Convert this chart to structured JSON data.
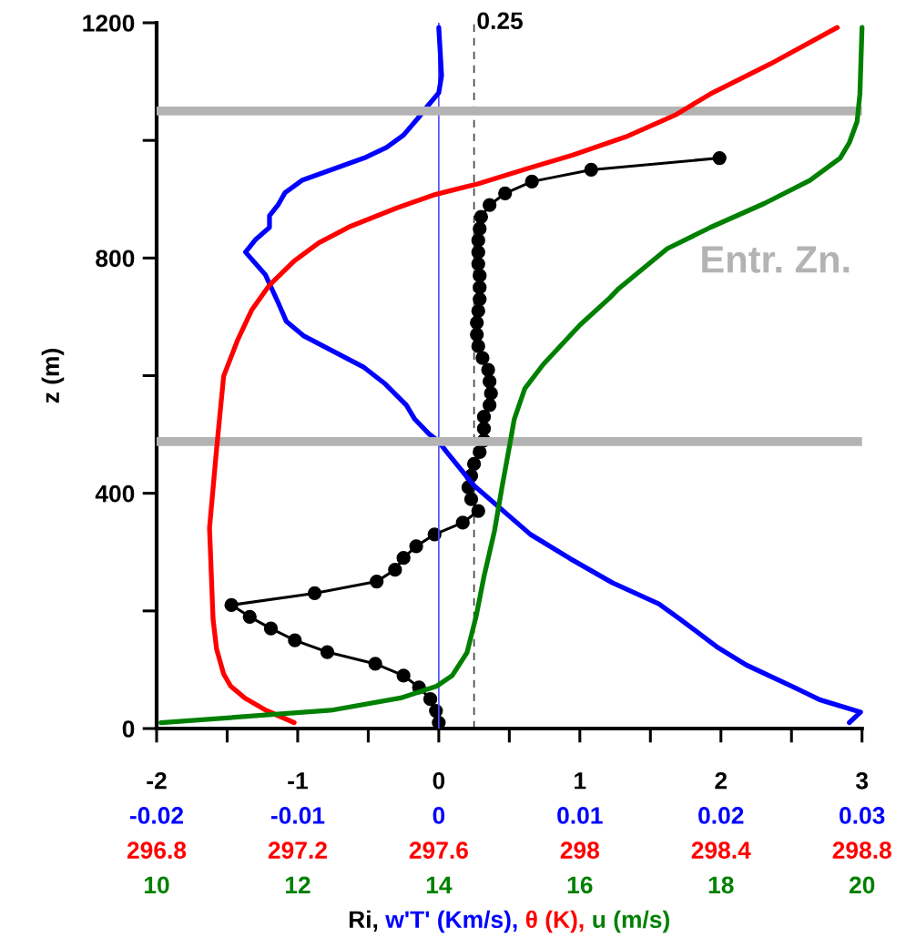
{
  "chart_data": [
    {
      "type": "line",
      "ylabel": "z (m)",
      "xlabel": "Ri, w'T' (Km/s), θ (K), u (m/s)",
      "ylim": [
        0,
        1200
      ],
      "yticks": [
        0,
        {
          "value": 200,
          "label": null
        },
        400,
        {
          "value": 600,
          "label": null
        },
        800,
        {
          "value": 1000,
          "label": null
        },
        1200
      ],
      "xlim": [
        -2,
        3
      ],
      "xticks": [
        -2,
        {
          "value": -1.5,
          "label": null
        },
        -1,
        {
          "value": -0.5,
          "label": null
        },
        0,
        {
          "value": 0.5,
          "label": null
        },
        1,
        {
          "value": 1.5,
          "label": null
        },
        2,
        {
          "value": 2.5,
          "label": null
        },
        3
      ],
      "x2lim": [
        -0.02,
        0.03
      ],
      "x2ticks": [
        -0.02,
        -0.01,
        0,
        0.01,
        0.02,
        0.03
      ],
      "line_style": "solid",
      "series": [
        {
          "color": "#000000",
          "marker": "circle",
          "x": [
            0,
            -0.02,
            -0.06,
            -0.14,
            -0.25,
            -0.45,
            -0.79,
            -1.02,
            -1.19,
            -1.34,
            -1.47,
            -0.88,
            -0.44,
            -0.31,
            -0.25,
            -0.16,
            -0.03,
            0.17,
            0.28,
            0.23,
            0.21,
            0.23,
            0.25,
            0.29,
            0.32,
            0.32,
            0.32,
            0.36,
            0.37,
            0.36,
            0.35,
            0.31,
            0.28,
            0.27,
            0.27,
            0.28,
            0.29,
            0.29,
            0.29,
            0.28,
            0.28,
            0.28,
            0.29,
            0.3,
            0.36,
            0.47,
            0.66,
            1.08,
            1.99
          ],
          "values": [
            10,
            30,
            50,
            70,
            90,
            110,
            130,
            150,
            170,
            190,
            210,
            230,
            250,
            270,
            290,
            310,
            330,
            350,
            370,
            390,
            410,
            430,
            450,
            470,
            490,
            510,
            530,
            550,
            570,
            590,
            610,
            630,
            650,
            670,
            690,
            710,
            730,
            750,
            770,
            790,
            810,
            830,
            850,
            870,
            890,
            910,
            930,
            950,
            970
          ]
        },
        {
          "color": "#0000ff",
          "marker": "none",
          "axis": "x2",
          "x": [
            0.0,
            0.0002,
            0.0,
            -0.0007,
            -0.0015,
            -0.0025,
            -0.0037,
            -0.0053,
            -0.0097,
            -0.0109,
            -0.0114,
            -0.012,
            -0.012,
            -0.013,
            -0.0137,
            -0.0123,
            -0.0114,
            -0.0108,
            -0.0096,
            -0.0053,
            -0.0038,
            -0.0023,
            -0.0017,
            -0.0007,
            0.0,
            0.0005,
            0.0025,
            0.0065,
            0.0093,
            0.0123,
            0.0156,
            0.0171,
            0.0197,
            0.0218,
            0.0252,
            0.027,
            0.0299,
            0.0291
          ],
          "values": [
            1192,
            1110,
            1081,
            1061,
            1037,
            1009,
            988,
            970,
            932,
            911,
            890,
            872,
            852,
            831,
            810,
            772,
            725,
            692,
            668,
            614,
            586,
            550,
            526,
            501,
            488,
            472,
            413,
            330,
            289,
            248,
            212,
            186,
            139,
            108,
            70,
            49,
            28,
            10
          ]
        }
      ],
      "ref_lines": [
        {
          "axis": "x",
          "value": 0.25,
          "label": "0.25",
          "color": "#404040",
          "line_style": "dashed"
        },
        {
          "axis": "x2",
          "value": 0,
          "color": "#4d4dff",
          "line_style": "solid"
        },
        {
          "axis": "y",
          "value": 488,
          "color": "#b3b3b3",
          "line_style": "solid"
        },
        {
          "axis": "y",
          "value": 1050,
          "color": "#b3b3b3",
          "line_style": "solid"
        }
      ],
      "annotations": [
        "Entr. Zn."
      ]
    },
    {
      "type": "line",
      "tick_labels": "x",
      "ylim": [
        0,
        1200
      ],
      "xlim": [
        296.8,
        298.8
      ],
      "xticks": [
        296.8,
        297.2,
        297.6,
        298,
        298.4,
        298.8
      ],
      "line_style": "solid",
      "series": [
        {
          "color": "#ff0000",
          "marker": "none",
          "x": [
            298.73,
            298.54,
            298.37,
            298.27,
            298.13,
            297.98,
            297.85,
            297.71,
            297.59,
            297.48,
            297.35,
            297.26,
            297.19,
            297.12,
            297.07,
            297.03,
            296.99,
            296.98,
            296.97,
            296.95,
            296.96,
            296.97,
            296.99,
            297.01,
            297.05,
            297.11,
            297.19
          ],
          "values": [
            1192,
            1130,
            1079,
            1043,
            1006,
            975,
            952,
            926,
            908,
            885,
            854,
            826,
            795,
            754,
            712,
            661,
            599,
            537,
            475,
            341,
            186,
            135,
            93,
            72,
            52,
            31,
            10
          ]
        }
      ]
    },
    {
      "type": "line",
      "tick_labels": "x",
      "ylim": [
        0,
        1200
      ],
      "xlim": [
        10,
        20
      ],
      "xticks": [
        10,
        12,
        14,
        16,
        18,
        20
      ],
      "line_style": "solid",
      "series": [
        {
          "color": "#008000",
          "marker": "none",
          "x": [
            20.0,
            19.97,
            19.93,
            19.82,
            19.69,
            19.26,
            18.62,
            17.85,
            17.24,
            16.55,
            16.43,
            16.0,
            15.48,
            15.22,
            15.07,
            15.01,
            14.9,
            14.79,
            14.64,
            14.53,
            14.4,
            14.19,
            13.97,
            13.46,
            12.47,
            10.06
          ],
          "values": [
            1192,
            1079,
            1032,
            996,
            970,
            932,
            893,
            852,
            816,
            748,
            733,
            686,
            619,
            578,
            526,
            485,
            413,
            336,
            258,
            191,
            129,
            90,
            72,
            52,
            31,
            10
          ]
        }
      ]
    }
  ]
}
